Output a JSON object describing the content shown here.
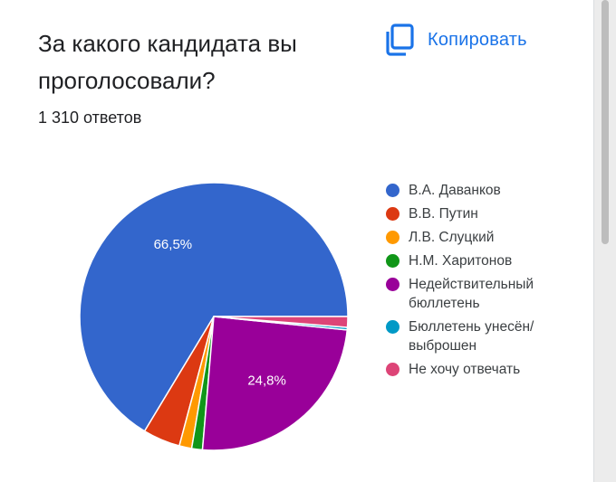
{
  "question": "За какого кандидата вы проголосовали?",
  "responses_text": "1 310 ответов",
  "copy_button": {
    "label": "Копировать",
    "icon": "copy-icon"
  },
  "colors": {
    "accent": "#1a73e8"
  },
  "chart_data": {
    "type": "pie",
    "title": "",
    "legend_position": "right",
    "slices": [
      {
        "label": "В.А. Даванков",
        "value": 66.5,
        "display": "66,5%",
        "color": "#3366cc"
      },
      {
        "label": "В.В. Путин",
        "value": 4.5,
        "display": "",
        "color": "#dc3912"
      },
      {
        "label": "Л.В. Слуцкий",
        "value": 1.5,
        "display": "",
        "color": "#ff9900"
      },
      {
        "label": "Н.М. Харитонов",
        "value": 1.3,
        "display": "",
        "color": "#109618"
      },
      {
        "label": "Недействительный бюллетень",
        "value": 24.8,
        "display": "24,8%",
        "color": "#990099"
      },
      {
        "label": "Бюллетень унесён/выброшен",
        "value": 0.3,
        "display": "",
        "color": "#0099c6"
      },
      {
        "label": "Не хочу отвечать",
        "value": 1.3,
        "display": "",
        "color": "#dd4477"
      }
    ]
  }
}
